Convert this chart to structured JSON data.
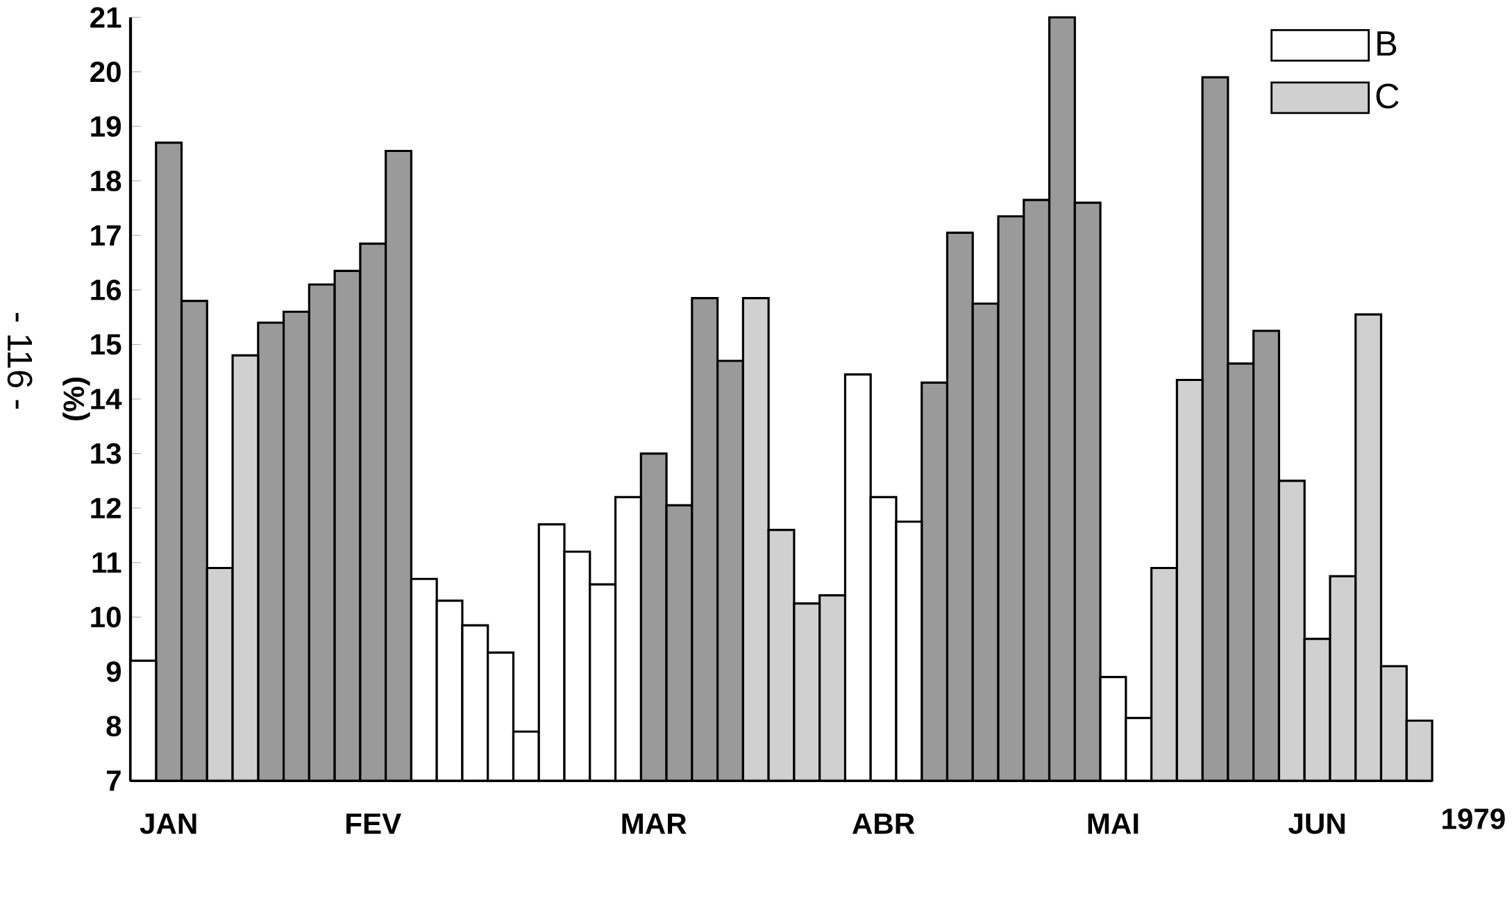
{
  "chart_data": {
    "type": "bar",
    "ylabel": "(%)",
    "categories": [
      null,
      "JAN",
      null,
      null,
      null,
      null,
      null,
      null,
      null,
      "FEV",
      null,
      null,
      null,
      null,
      null,
      null,
      null,
      null,
      null,
      null,
      "MAR",
      null,
      null,
      null,
      null,
      null,
      null,
      null,
      null,
      "ABR",
      null,
      null,
      null,
      null,
      null,
      null,
      null,
      null,
      "MAI",
      null,
      null,
      null,
      null,
      null,
      null,
      null,
      "JUN",
      null,
      null,
      null,
      null
    ],
    "series": [
      {
        "color": "#9a9a9a",
        "values": [
          null,
          18.7,
          15.8,
          null,
          null,
          15.4,
          15.6,
          16.1,
          16.35,
          16.85,
          18.55,
          null,
          null,
          null,
          null,
          null,
          null,
          null,
          null,
          null,
          13.0,
          12.05,
          15.85,
          14.7,
          null,
          null,
          null,
          null,
          null,
          null,
          null,
          14.3,
          17.05,
          15.75,
          17.35,
          17.65,
          21.0,
          17.6,
          null,
          null,
          null,
          null,
          19.9,
          14.65,
          15.25,
          null,
          null,
          null,
          null,
          null,
          null
        ]
      },
      {
        "name": "B",
        "color": "#ffffff",
        "values": [
          9.2,
          null,
          null,
          null,
          null,
          null,
          null,
          null,
          null,
          null,
          null,
          10.7,
          10.3,
          9.85,
          9.35,
          7.9,
          11.7,
          11.2,
          10.6,
          12.2,
          null,
          null,
          null,
          null,
          null,
          null,
          null,
          null,
          14.45,
          12.2,
          11.75,
          null,
          null,
          null,
          null,
          null,
          null,
          null,
          8.9,
          8.15,
          null,
          null,
          null,
          null,
          null,
          null,
          null,
          null,
          null,
          null,
          null
        ]
      },
      {
        "name": "C",
        "color": "#d0d0d0",
        "values": [
          null,
          null,
          null,
          10.9,
          14.8,
          null,
          null,
          null,
          null,
          null,
          null,
          null,
          null,
          null,
          null,
          null,
          null,
          null,
          null,
          null,
          null,
          null,
          null,
          null,
          15.85,
          11.6,
          10.25,
          10.4,
          null,
          null,
          null,
          null,
          null,
          null,
          null,
          null,
          null,
          null,
          null,
          null,
          10.9,
          14.35,
          null,
          null,
          null,
          12.5,
          9.6,
          10.75,
          15.55,
          9.1,
          8.1
        ]
      }
    ],
    "ylim": [
      7,
      21
    ],
    "yticks": [
      7,
      8,
      9,
      10,
      11,
      12,
      13,
      14,
      15,
      16,
      17,
      18,
      19,
      20,
      21
    ],
    "legend": "top right",
    "annotations": [
      "1979",
      "- 116 -"
    ]
  }
}
